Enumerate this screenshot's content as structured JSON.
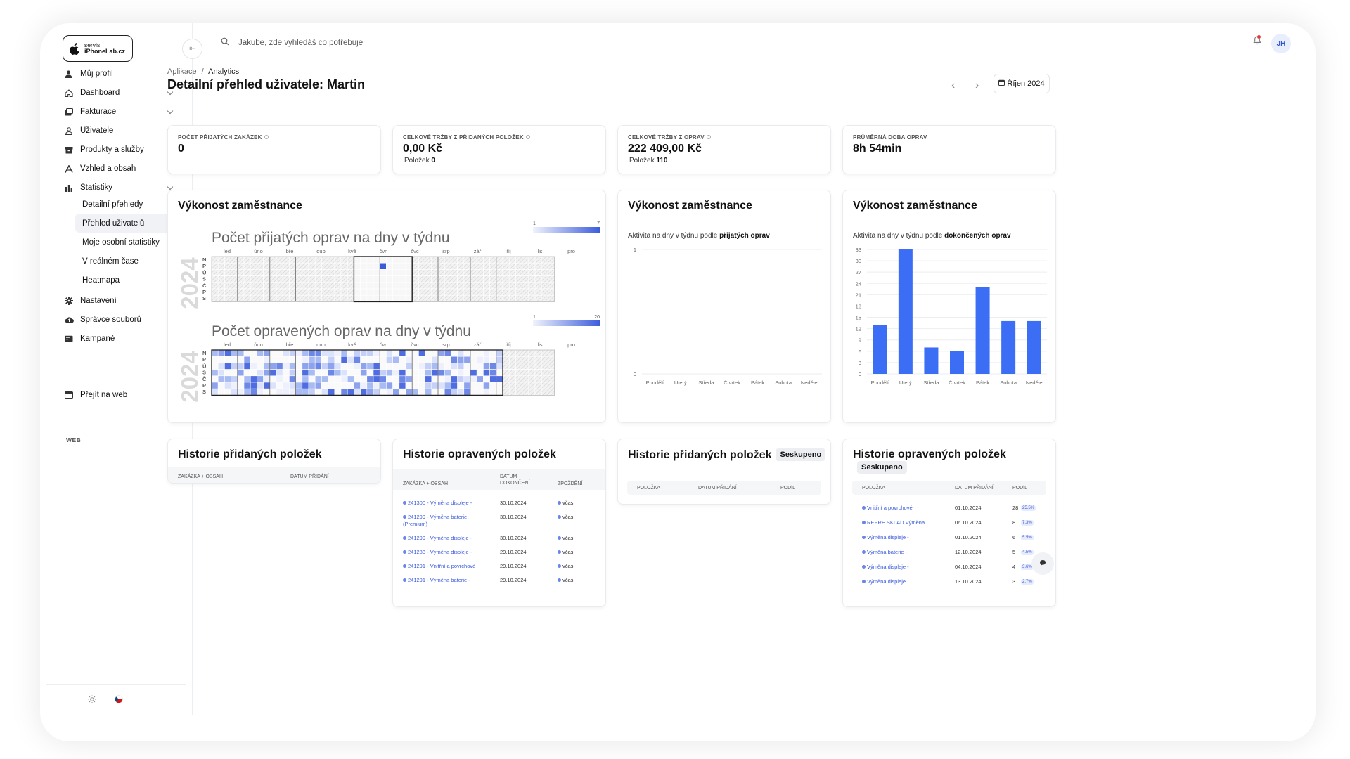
{
  "brand": {
    "line1": "servis",
    "line2": "iPhoneLab.cz"
  },
  "search": {
    "placeholder": "Jakube, zde vyhledáš co potřebuje"
  },
  "user": {
    "initials": "JH"
  },
  "sidebar": {
    "items": [
      {
        "label": "Můj profil",
        "icon": "user-icon",
        "chevron": false
      },
      {
        "label": "Dashboard",
        "icon": "home-icon",
        "chevron": true
      },
      {
        "label": "Fakturace",
        "icon": "invoice-icon",
        "chevron": true
      },
      {
        "label": "Uživatele",
        "icon": "users-icon",
        "chevron": true
      },
      {
        "label": "Produkty a služby",
        "icon": "box-icon",
        "chevron": true
      },
      {
        "label": "Vzhled a obsah",
        "icon": "brush-icon",
        "chevron": true
      },
      {
        "label": "Statistiky",
        "icon": "bar-chart-icon",
        "chevron": true
      }
    ],
    "subitems": [
      {
        "label": "Detailní přehledy",
        "active": false
      },
      {
        "label": "Přehled uživatelů",
        "active": true
      },
      {
        "label": "Moje osobní statistiky",
        "active": false
      },
      {
        "label": "V reálném čase",
        "active": false
      },
      {
        "label": "Heatmapa",
        "active": false
      }
    ],
    "items2": [
      {
        "label": "Nastavení",
        "icon": "gear-icon",
        "chevron": true
      },
      {
        "label": "Správce souborů",
        "icon": "cloud-icon",
        "chevron": true
      },
      {
        "label": "Kampaně",
        "icon": "mail-icon",
        "chevron": true
      }
    ],
    "web_label": "WEB",
    "web_item": {
      "label": "Přejít na web",
      "icon": "web-icon"
    }
  },
  "breadcrumb": {
    "parent": "Aplikace",
    "sep": "/",
    "current": "Analytics"
  },
  "page": {
    "title": "Detailní přehled uživatele: Martin",
    "month": "Říjen 2024"
  },
  "stats": [
    {
      "label": "Počet přijatých zakázek",
      "value": "0",
      "sub_label": "",
      "sub_value": ""
    },
    {
      "label": "Celkové tržby z přidaných položek",
      "value": "0,00 Kč",
      "sub_label": "Položek",
      "sub_value": "0"
    },
    {
      "label": "Celkové tržby z oprav",
      "value": "222 409,00 Kč",
      "sub_label": "Položek",
      "sub_value": "110"
    },
    {
      "label": "Průměrná doba oprav",
      "value": "8h 54min",
      "sub_label": "",
      "sub_value": ""
    }
  ],
  "performance": {
    "title": "Výkonost zaměstnance",
    "heat1": {
      "title": "Počet přijatých oprav na dny v týdnu",
      "year": "2024",
      "scale_min": "1",
      "scale_max": "7"
    },
    "heat2": {
      "title": "Počet opravených oprav na dny v týdnu",
      "year": "2024",
      "scale_min": "1",
      "scale_max": "20"
    },
    "months": [
      "led",
      "úno",
      "bře",
      "dub",
      "kvě",
      "čvn",
      "čvc",
      "srp",
      "zář",
      "říj",
      "lis",
      "pro"
    ],
    "day_letters": [
      "N",
      "P",
      "Ú",
      "S",
      "Č",
      "P",
      "S"
    ]
  },
  "accepted_chart": {
    "title": "Výkonost zaměstnance",
    "caption_prefix": "Aktivita na dny v týdnu podle",
    "caption_bold": "přijatých oprav"
  },
  "completed_chart": {
    "title": "Výkonost zaměstnance",
    "caption_prefix": "Aktivita na dny v týdnu podle",
    "caption_bold": "dokončených oprav"
  },
  "chart_data": [
    {
      "type": "bar",
      "title": "",
      "categories": [
        "Pondělí",
        "Úterý",
        "Středa",
        "Čtvrtek",
        "Pátek",
        "Sobota",
        "Neděle"
      ],
      "values": [
        0,
        0,
        0,
        0,
        0,
        0,
        0
      ],
      "yticks": [
        "0",
        "1"
      ],
      "ylim": [
        0,
        1
      ],
      "grid": true,
      "color": "#3b6ef5"
    },
    {
      "type": "bar",
      "title": "",
      "categories": [
        "Pondělí",
        "Úterý",
        "Středa",
        "Čtvrtek",
        "Pátek",
        "Sobota",
        "Neděle"
      ],
      "values": [
        13,
        33,
        7,
        6,
        23,
        14,
        14
      ],
      "yticks": [
        "0",
        "3",
        "6",
        "9",
        "12",
        "15",
        "18",
        "21",
        "24",
        "27",
        "30",
        "33"
      ],
      "ylim": [
        0,
        33
      ],
      "grid": true,
      "color": "#3b6ef5"
    }
  ],
  "hist_added": {
    "title": "Historie přidaných položek",
    "col1": "Zakázka + obsah",
    "col2": "Datum přidání"
  },
  "hist_repaired": {
    "title": "Historie opravených položek",
    "col1": "Zakázka + obsah",
    "col2a": "Datum",
    "col2b": "dokončení",
    "col3": "Zpoždění",
    "rows": [
      {
        "link": "241300 - Výměna displeje -",
        "link2": "",
        "date": "30.10.2024",
        "delay": "včas"
      },
      {
        "link": "241299 - Výměna baterie",
        "link2": "(Premium)",
        "date": "30.10.2024",
        "delay": "včas"
      },
      {
        "link": "241299 - Výměna displeje -",
        "link2": "",
        "date": "30.10.2024",
        "delay": "včas"
      },
      {
        "link": "241283 - Výměna displeje -",
        "link2": "",
        "date": "29.10.2024",
        "delay": "včas"
      },
      {
        "link": "241291 - Vnitřní a povrchové",
        "link2": "",
        "date": "29.10.2024",
        "delay": "včas"
      },
      {
        "link": "241291 - Výměna baterie -",
        "link2": "",
        "date": "29.10.2024",
        "delay": "včas"
      }
    ]
  },
  "hist_added_grouped": {
    "title": "Historie přidaných položek",
    "badge": "Seskupeno",
    "col1": "Položka",
    "col2": "Datum přidání",
    "col3": "Podíl"
  },
  "hist_repaired_grouped": {
    "title": "Historie opravených položek",
    "badge": "Seskupeno",
    "col1": "Položka",
    "col2": "Datum přidání",
    "col3": "Podíl",
    "rows": [
      {
        "name": "Vnitřní a povrchové",
        "date": "01.10.2024",
        "count": "28",
        "pct": "25.5%"
      },
      {
        "name": "REPRE SKLAD Výměna",
        "date": "06.10.2024",
        "count": "8",
        "pct": "7.3%"
      },
      {
        "name": "Výměna displeje -",
        "date": "01.10.2024",
        "count": "6",
        "pct": "5.5%"
      },
      {
        "name": "Výměna baterie -",
        "date": "12.10.2024",
        "count": "5",
        "pct": "4.5%"
      },
      {
        "name": "Výměna displeje -",
        "date": "04.10.2024",
        "count": "4",
        "pct": "3.6%"
      },
      {
        "name": "Výměna displeje",
        "date": "13.10.2024",
        "count": "3",
        "pct": "2.7%"
      }
    ]
  }
}
